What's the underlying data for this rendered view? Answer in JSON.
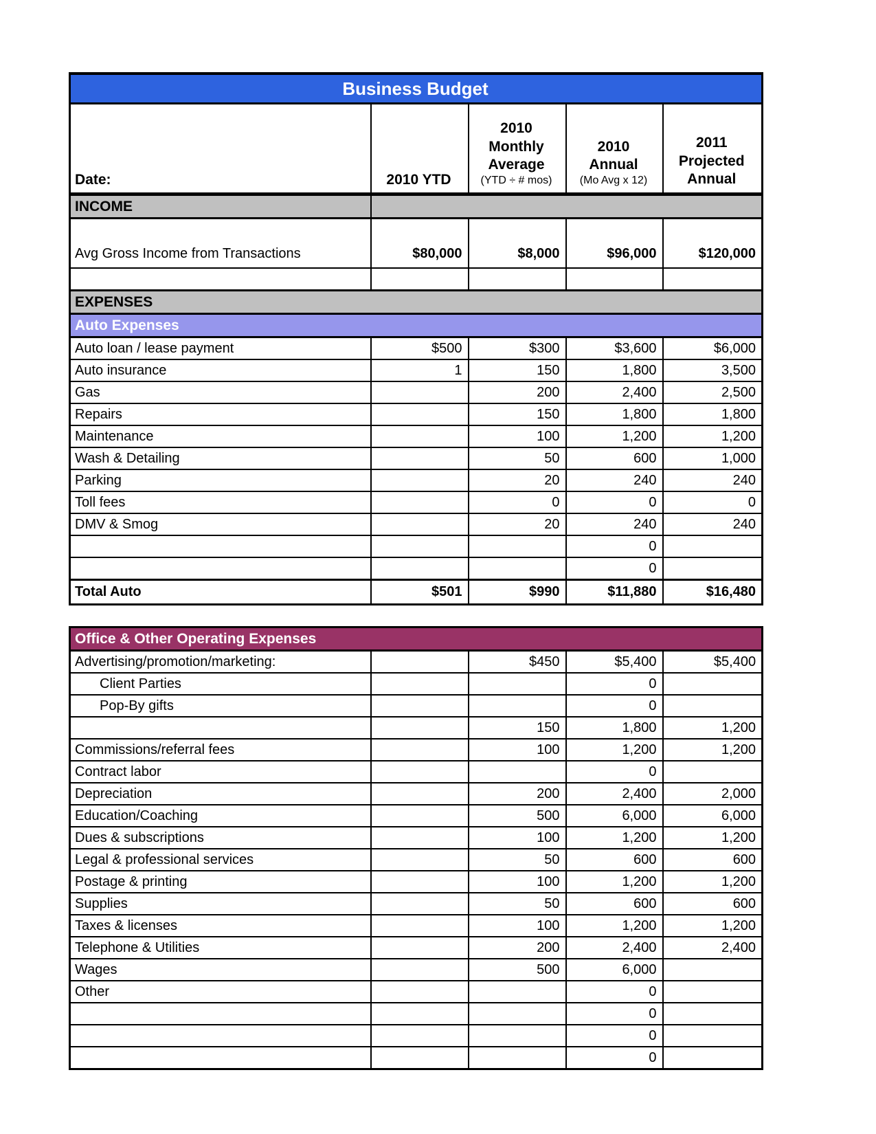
{
  "page": {
    "title": "Business Budget"
  },
  "header": {
    "date_label": "Date:",
    "col_ytd": "2010 YTD",
    "col_monthly": {
      "main": "2010\nMonthly\nAverage",
      "sub": "(YTD ÷ # mos)"
    },
    "col_annual": {
      "main": "2010\nAnnual",
      "sub": "(Mo Avg x 12)"
    },
    "col_projected": {
      "main": "2011\nProjected\nAnnual"
    }
  },
  "income": {
    "band": "INCOME",
    "row": {
      "label": "Avg Gross Income from Transactions",
      "ytd": "$80,000",
      "monthly": "$8,000",
      "annual": "$96,000",
      "projected": "$120,000"
    }
  },
  "expenses": {
    "band": "EXPENSES"
  },
  "auto": {
    "band": "Auto Expenses",
    "rows": [
      {
        "label": "Auto loan / lease payment",
        "ytd": "$500",
        "monthly": "$300",
        "annual": "$3,600",
        "projected": "$6,000"
      },
      {
        "label": "Auto insurance",
        "ytd": "1",
        "monthly": "150",
        "annual": "1,800",
        "projected": "3,500"
      },
      {
        "label": "Gas",
        "ytd": "",
        "monthly": "200",
        "annual": "2,400",
        "projected": "2,500"
      },
      {
        "label": "Repairs",
        "ytd": "",
        "monthly": "150",
        "annual": "1,800",
        "projected": "1,800"
      },
      {
        "label": "Maintenance",
        "ytd": "",
        "monthly": "100",
        "annual": "1,200",
        "projected": "1,200"
      },
      {
        "label": "Wash & Detailing",
        "ytd": "",
        "monthly": "50",
        "annual": "600",
        "projected": "1,000"
      },
      {
        "label": "Parking",
        "ytd": "",
        "monthly": "20",
        "annual": "240",
        "projected": "240"
      },
      {
        "label": "Toll fees",
        "ytd": "",
        "monthly": "0",
        "annual": "0",
        "projected": "0"
      },
      {
        "label": "DMV & Smog",
        "ytd": "",
        "monthly": "20",
        "annual": "240",
        "projected": "240"
      },
      {
        "label": "",
        "ytd": "",
        "monthly": "",
        "annual": "0",
        "projected": ""
      },
      {
        "label": "",
        "ytd": "",
        "monthly": "",
        "annual": "0",
        "projected": ""
      }
    ],
    "total": {
      "label": "Total Auto",
      "ytd": "$501",
      "monthly": "$990",
      "annual": "$11,880",
      "projected": "$16,480"
    }
  },
  "office": {
    "band": "Office & Other Operating Expenses",
    "rows": [
      {
        "label": "Advertising/promotion/marketing:",
        "ytd": "",
        "monthly": "$450",
        "annual": "$5,400",
        "projected": "$5,400"
      },
      {
        "label": "Client Parties",
        "ytd": "",
        "monthly": "",
        "annual": "0",
        "projected": ""
      },
      {
        "label": "Pop-By gifts",
        "ytd": "",
        "monthly": "",
        "annual": "0",
        "projected": ""
      },
      {
        "label": "",
        "ytd": "",
        "monthly": "150",
        "annual": "1,800",
        "projected": "1,200"
      },
      {
        "label": "Commissions/referral fees",
        "ytd": "",
        "monthly": "100",
        "annual": "1,200",
        "projected": "1,200"
      },
      {
        "label": "Contract labor",
        "ytd": "",
        "monthly": "",
        "annual": "0",
        "projected": ""
      },
      {
        "label": "Depreciation",
        "ytd": "",
        "monthly": "200",
        "annual": "2,400",
        "projected": "2,000"
      },
      {
        "label": "Education/Coaching",
        "ytd": "",
        "monthly": "500",
        "annual": "6,000",
        "projected": "6,000"
      },
      {
        "label": "Dues & subscriptions",
        "ytd": "",
        "monthly": "100",
        "annual": "1,200",
        "projected": "1,200"
      },
      {
        "label": "Legal & professional services",
        "ytd": "",
        "monthly": "50",
        "annual": "600",
        "projected": "600"
      },
      {
        "label": "Postage & printing",
        "ytd": "",
        "monthly": "100",
        "annual": "1,200",
        "projected": "1,200"
      },
      {
        "label": "Supplies",
        "ytd": "",
        "monthly": "50",
        "annual": "600",
        "projected": "600"
      },
      {
        "label": "Taxes & licenses",
        "ytd": "",
        "monthly": "100",
        "annual": "1,200",
        "projected": "1,200"
      },
      {
        "label": "Telephone & Utilities",
        "ytd": "",
        "monthly": "200",
        "annual": "2,400",
        "projected": "2,400"
      },
      {
        "label": "Wages",
        "ytd": "",
        "monthly": "500",
        "annual": "6,000",
        "projected": ""
      },
      {
        "label": "Other",
        "ytd": "",
        "monthly": "",
        "annual": "0",
        "projected": ""
      },
      {
        "label": "",
        "ytd": "",
        "monthly": "",
        "annual": "0",
        "projected": ""
      },
      {
        "label": "",
        "ytd": "",
        "monthly": "",
        "annual": "0",
        "projected": ""
      },
      {
        "label": "",
        "ytd": "",
        "monthly": "",
        "annual": "0",
        "projected": ""
      }
    ]
  },
  "colors": {
    "title_bar_blue": "#2E63DF",
    "section_band_gray": "#C0C0C0",
    "auto_band_periwinkle": "#9696EC",
    "office_band_plum": "#993366"
  }
}
